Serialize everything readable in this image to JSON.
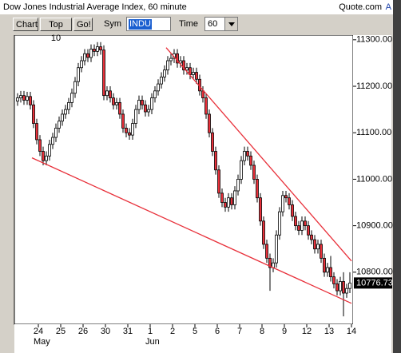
{
  "header": {
    "title": "Dow Jones Industrial Average Index, 60 minute",
    "site": "Quote.com",
    "corner": "A"
  },
  "toolbar": {
    "buttons": [
      "Chart",
      "Top 10",
      "Go!"
    ],
    "sym_label": "Sym",
    "sym_value": "INDU",
    "time_label": "Time",
    "time_value": "60"
  },
  "chart_data": {
    "type": "candlestick",
    "up_color": "#ffffff",
    "down_color": "#e8303a",
    "grid": false,
    "open": [
      11168,
      11175,
      11180,
      11170,
      11178,
      11160,
      11120,
      11085,
      11060,
      11040,
      11050,
      11075,
      11090,
      11110,
      11125,
      11140,
      11150,
      11165,
      11185,
      11210,
      11240,
      11255,
      11270,
      11262,
      11280,
      11275,
      11285,
      11278,
      11180,
      11190,
      11175,
      11160,
      11165,
      11140,
      11110,
      11100,
      11095,
      11120,
      11150,
      11170,
      11160,
      11145,
      11150,
      11175,
      11190,
      11205,
      11220,
      11235,
      11255,
      11260,
      11270,
      11250,
      11255,
      11235,
      11240,
      11225,
      11230,
      11215,
      11190,
      11175,
      11140,
      11100,
      11060,
      11020,
      10970,
      10950,
      10940,
      10960,
      10945,
      10975,
      11000,
      11040,
      11060,
      11050,
      11030,
      11000,
      10960,
      10910,
      10860,
      10830,
      10810,
      10820,
      10880,
      10930,
      10965,
      10960,
      10945,
      10920,
      10900,
      10890,
      10910,
      10900,
      10880,
      10870,
      10850,
      10860,
      10830,
      10800,
      10810,
      10790,
      10775,
      10760,
      10780,
      10755,
      10765
    ],
    "high": [
      11185,
      11190,
      11190,
      11188,
      11188,
      11170,
      11130,
      11095,
      11070,
      11060,
      11085,
      11100,
      11120,
      11135,
      11150,
      11160,
      11175,
      11195,
      11220,
      11250,
      11265,
      11280,
      11280,
      11290,
      11290,
      11295,
      11295,
      11288,
      11200,
      11200,
      11185,
      11175,
      11175,
      11150,
      11120,
      11110,
      11130,
      11160,
      11180,
      11180,
      11170,
      11160,
      11185,
      11200,
      11215,
      11230,
      11245,
      11265,
      11270,
      11280,
      11280,
      11265,
      11265,
      11250,
      11250,
      11240,
      11240,
      11225,
      11200,
      11185,
      11150,
      11110,
      11070,
      11030,
      10980,
      10960,
      10970,
      10970,
      10985,
      11010,
      11050,
      11070,
      11070,
      11060,
      11040,
      11010,
      10970,
      10920,
      10870,
      10840,
      10830,
      10890,
      10940,
      10975,
      10975,
      10970,
      10955,
      10930,
      10910,
      10920,
      10920,
      10910,
      10890,
      10880,
      10870,
      10870,
      10840,
      10820,
      10835,
      10800,
      10785,
      10790,
      10800,
      10775,
      10800
    ],
    "low": [
      11158,
      11165,
      11160,
      11160,
      11150,
      11110,
      11075,
      11050,
      11030,
      11030,
      11040,
      11065,
      11080,
      11100,
      11115,
      11130,
      11140,
      11155,
      11175,
      11200,
      11230,
      11245,
      11252,
      11252,
      11265,
      11265,
      11268,
      11170,
      11170,
      11165,
      11150,
      11150,
      11130,
      11100,
      11090,
      11085,
      11085,
      11110,
      11140,
      11150,
      11135,
      11135,
      11140,
      11165,
      11180,
      11195,
      11210,
      11225,
      11245,
      11250,
      11240,
      11240,
      11225,
      11225,
      11215,
      11215,
      11205,
      11180,
      11165,
      11130,
      11090,
      11050,
      11010,
      10960,
      10940,
      10930,
      10930,
      10935,
      10935,
      10965,
      10990,
      11030,
      11040,
      11020,
      10990,
      10950,
      10900,
      10850,
      10820,
      10760,
      10800,
      10810,
      10870,
      10920,
      10950,
      10935,
      10910,
      10890,
      10880,
      10880,
      10890,
      10870,
      10860,
      10840,
      10840,
      10820,
      10790,
      10790,
      10780,
      10765,
      10750,
      10750,
      10705,
      10745,
      10755
    ],
    "close": [
      11175,
      11180,
      11170,
      11178,
      11160,
      11120,
      11085,
      11060,
      11040,
      11050,
      11075,
      11090,
      11110,
      11125,
      11140,
      11150,
      11165,
      11185,
      11210,
      11240,
      11255,
      11270,
      11262,
      11280,
      11275,
      11285,
      11278,
      11180,
      11190,
      11175,
      11160,
      11165,
      11140,
      11110,
      11100,
      11095,
      11120,
      11150,
      11170,
      11160,
      11145,
      11150,
      11175,
      11190,
      11205,
      11220,
      11235,
      11255,
      11260,
      11270,
      11250,
      11255,
      11235,
      11240,
      11225,
      11230,
      11215,
      11190,
      11175,
      11140,
      11100,
      11060,
      11020,
      10970,
      10950,
      10940,
      10960,
      10945,
      10975,
      11000,
      11040,
      11060,
      11050,
      11030,
      11000,
      10960,
      10910,
      10860,
      10830,
      10810,
      10820,
      10880,
      10930,
      10965,
      10960,
      10945,
      10920,
      10900,
      10890,
      10910,
      10900,
      10880,
      10870,
      10850,
      10860,
      10830,
      10800,
      10810,
      10790,
      10775,
      10760,
      10780,
      10755,
      10765,
      10776.73
    ],
    "last_price": 10776.73,
    "xlim": [
      -1,
      105
    ],
    "ylim": [
      10688,
      11310
    ],
    "xticks": [
      {
        "value": 6.5,
        "label": "24"
      },
      {
        "value": 13.5,
        "label": "25"
      },
      {
        "value": 20.5,
        "label": "26"
      },
      {
        "value": 27.5,
        "label": "30"
      },
      {
        "value": 34.5,
        "label": "31"
      },
      {
        "value": 41.5,
        "label": "1"
      },
      {
        "value": 48.5,
        "label": "2"
      },
      {
        "value": 55.5,
        "label": "5"
      },
      {
        "value": 62.5,
        "label": "6"
      },
      {
        "value": 69.5,
        "label": "7"
      },
      {
        "value": 76.5,
        "label": "8"
      },
      {
        "value": 83.5,
        "label": "9"
      },
      {
        "value": 90.5,
        "label": "12"
      },
      {
        "value": 97.5,
        "label": "13"
      },
      {
        "value": 104.5,
        "label": "14"
      }
    ],
    "month_labels": [
      {
        "value": 6.5,
        "label": "May"
      },
      {
        "value": 41.5,
        "label": "Jun"
      }
    ],
    "yticks": [
      {
        "value": 10800,
        "label": "10800.00"
      },
      {
        "value": 10900,
        "label": "10900.00"
      },
      {
        "value": 11000,
        "label": "11000.00"
      },
      {
        "value": 11100,
        "label": "11100.00"
      },
      {
        "value": 11200,
        "label": "11200.00"
      },
      {
        "value": 11300,
        "label": "11300.00"
      }
    ],
    "trendlines": [
      {
        "color": "#e8303a",
        "x": [
          46.5,
          104.5
        ],
        "y": [
          11283,
          10824
        ]
      },
      {
        "color": "#e8303a",
        "x": [
          4.5,
          104.5
        ],
        "y": [
          11046,
          10733
        ]
      }
    ]
  }
}
